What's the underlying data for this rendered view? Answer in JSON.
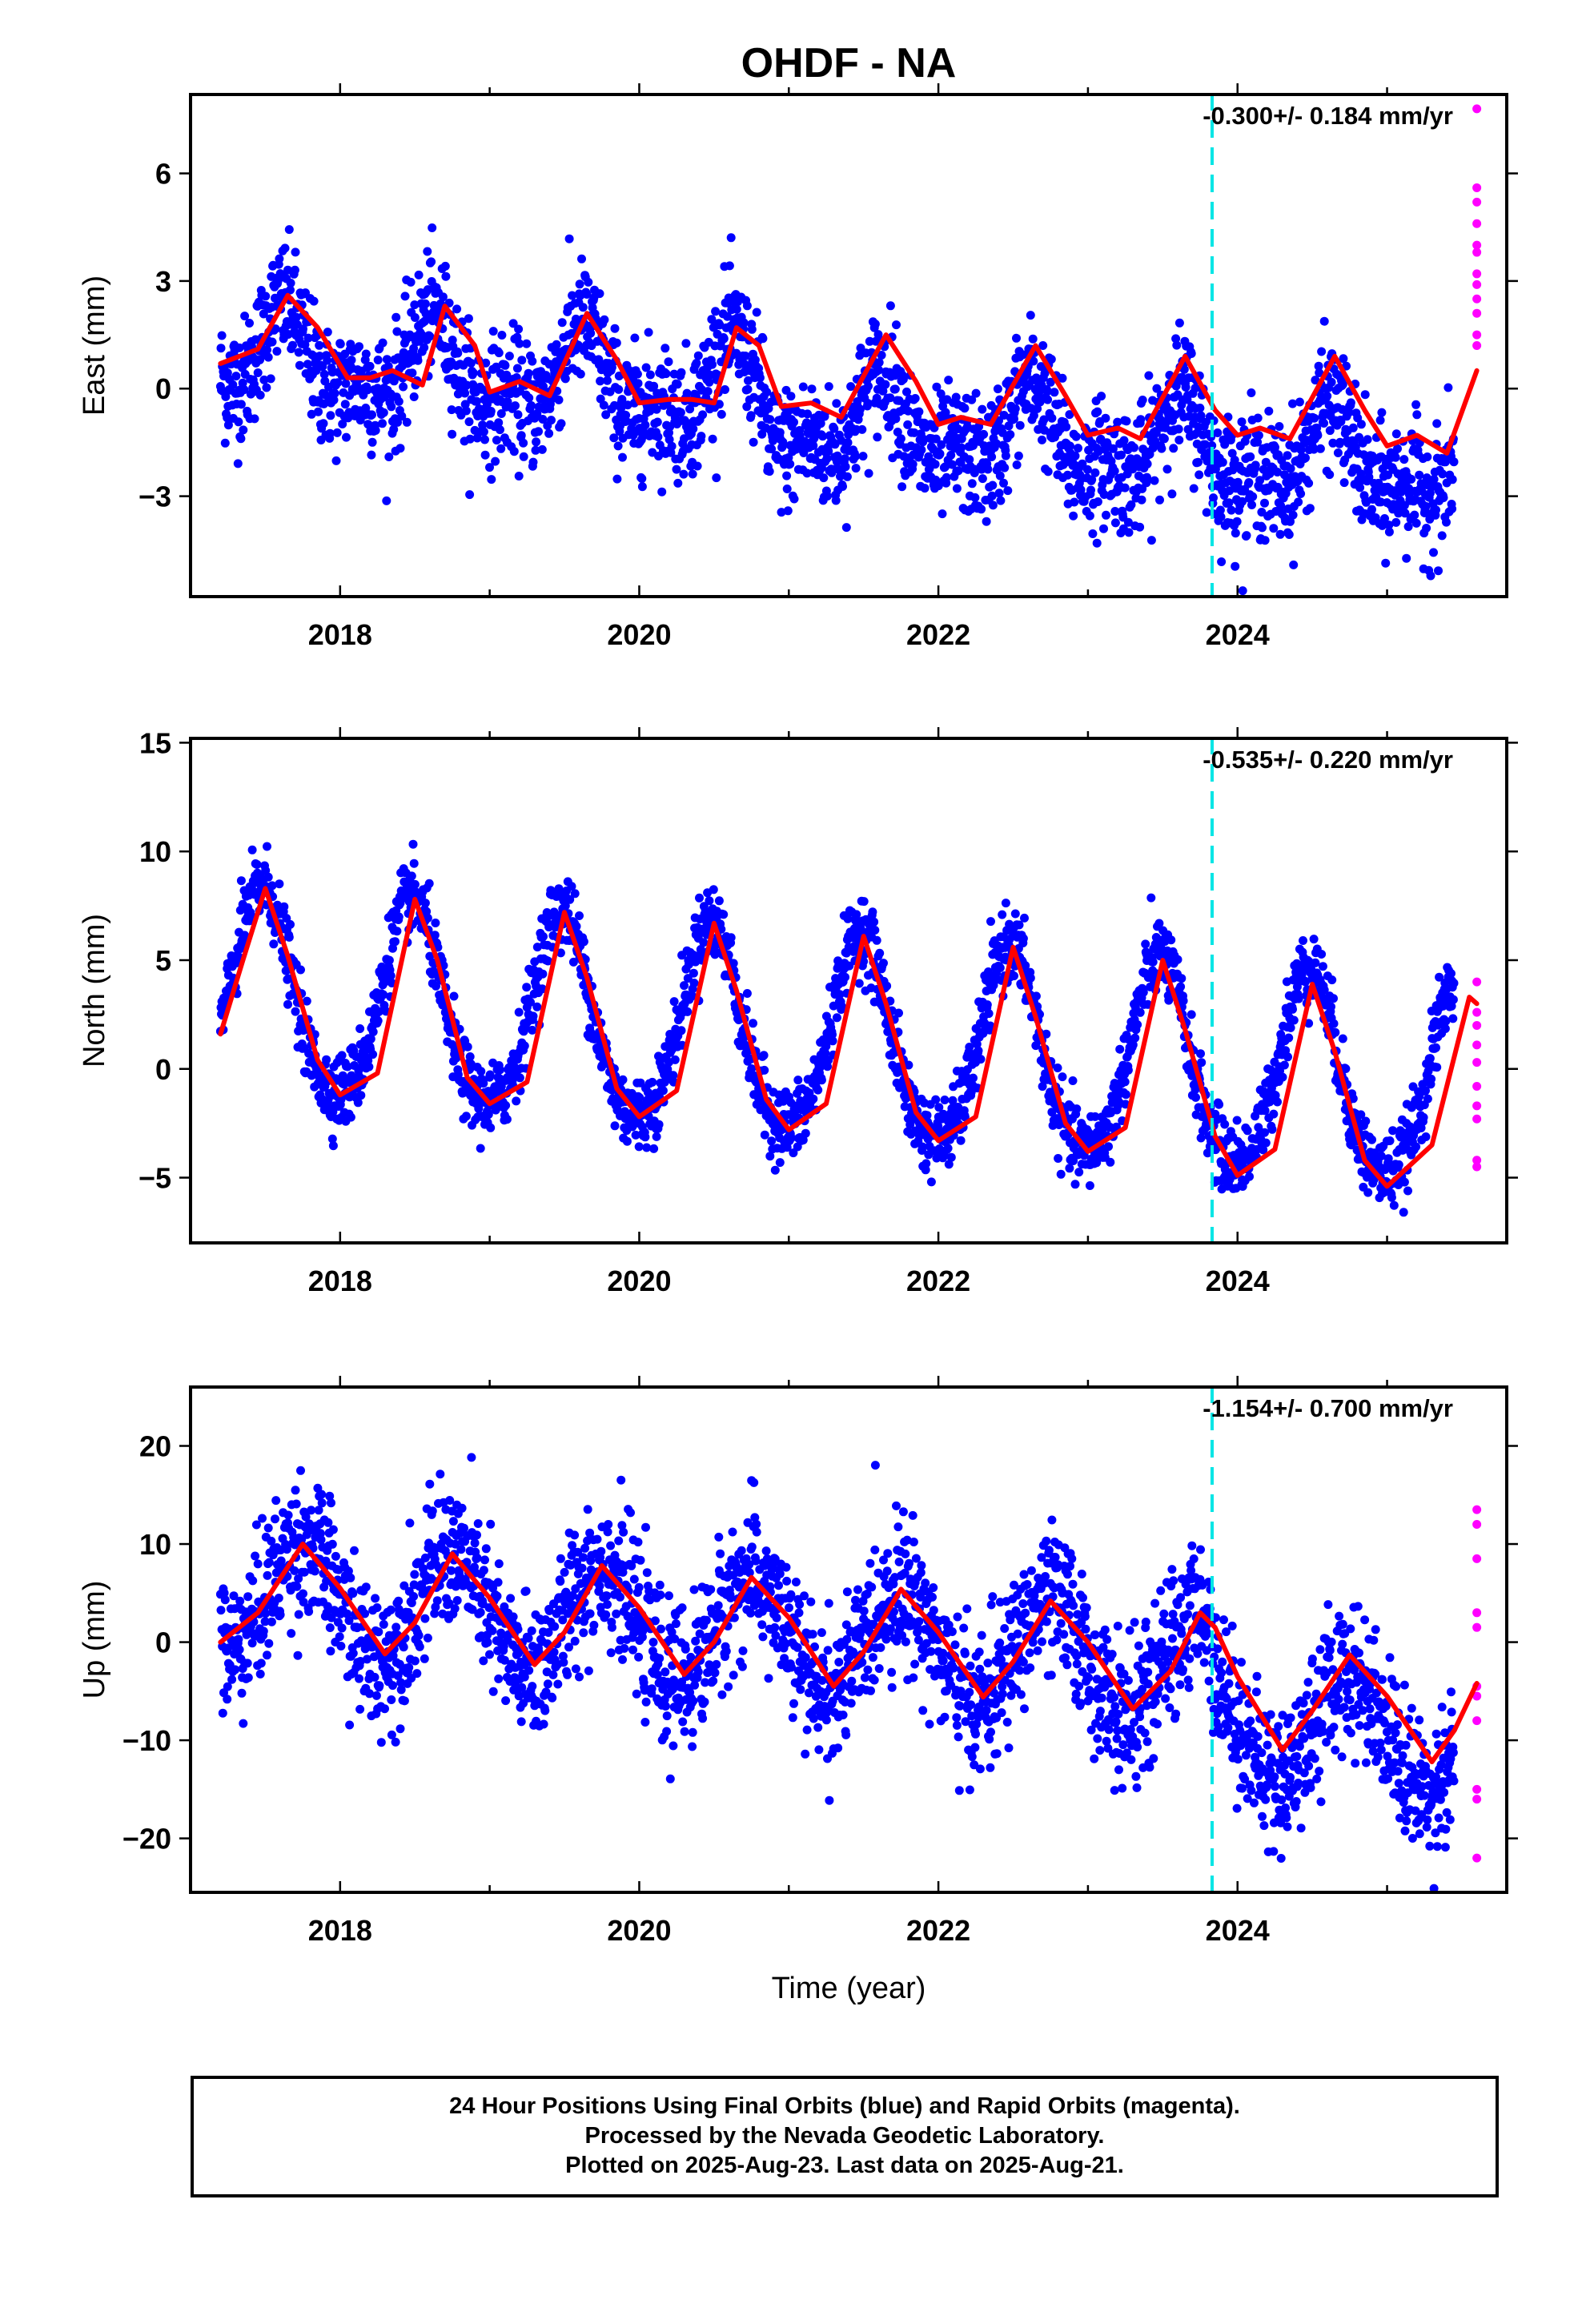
{
  "title": "OHDF - NA",
  "colors": {
    "final_orbits": "#0000ff",
    "rapid_orbits": "#ff00ff",
    "model_fit": "#ff0000",
    "event_line": "#00e5e5"
  },
  "footer": {
    "line1": "24 Hour Positions Using Final Orbits (blue) and Rapid Orbits (magenta).",
    "line2": "Processed by the Nevada Geodetic Laboratory.",
    "line3": "Plotted on 2025-Aug-23. Last data on 2025-Aug-21."
  },
  "chart_data": [
    {
      "type": "scatter",
      "name": "east",
      "ylabel": "East (mm)",
      "xlabel": "",
      "xlim": [
        2017.0,
        2025.8
      ],
      "ylim": [
        -5.8,
        8.2
      ],
      "x_ticks": [
        2018,
        2020,
        2022,
        2024
      ],
      "y_ticks": [
        -3,
        0,
        3,
        6
      ],
      "y_tick_labels": [
        "−3",
        "0",
        "3",
        "6"
      ],
      "rate_label": "-0.300+/- 0.184 mm/yr",
      "event_line_x": 2023.83,
      "series": [
        {
          "name": "final orbits (blue)",
          "color": "#0000ff",
          "x_range": [
            2017.2,
            2025.45
          ],
          "trend_offset": 0.95,
          "rate": -0.3,
          "annual_amp": 1.05,
          "annual_phase_peak": 0.62,
          "semi_amp": 0.55,
          "noise_sd": 0.85,
          "step_year": 2020.85,
          "step_mm": -0.7
        },
        {
          "name": "rapid orbits (magenta)",
          "color": "#ff00ff",
          "points": [
            [
              2025.6,
              7.8
            ],
            [
              2025.6,
              5.6
            ],
            [
              2025.6,
              5.2
            ],
            [
              2025.6,
              4.6
            ],
            [
              2025.6,
              4.0
            ],
            [
              2025.6,
              3.8
            ],
            [
              2025.6,
              3.2
            ],
            [
              2025.6,
              2.9
            ],
            [
              2025.6,
              2.5
            ],
            [
              2025.6,
              2.1
            ],
            [
              2025.6,
              1.5
            ],
            [
              2025.6,
              1.2
            ]
          ]
        }
      ],
      "fit_line": {
        "color": "#ff0000",
        "points": [
          [
            2017.2,
            0.7
          ],
          [
            2017.45,
            1.1
          ],
          [
            2017.65,
            2.6
          ],
          [
            2017.85,
            1.7
          ],
          [
            2018.05,
            0.3
          ],
          [
            2018.2,
            0.3
          ],
          [
            2018.35,
            0.5
          ],
          [
            2018.55,
            0.1
          ],
          [
            2018.7,
            2.3
          ],
          [
            2018.9,
            1.2
          ],
          [
            2019.0,
            -0.1
          ],
          [
            2019.2,
            0.2
          ],
          [
            2019.4,
            -0.2
          ],
          [
            2019.65,
            2.1
          ],
          [
            2019.85,
            0.8
          ],
          [
            2020.0,
            -0.4
          ],
          [
            2020.2,
            -0.3
          ],
          [
            2020.35,
            -0.3
          ],
          [
            2020.5,
            -0.4
          ],
          [
            2020.65,
            1.7
          ],
          [
            2020.8,
            1.2
          ],
          [
            2020.95,
            -0.5
          ],
          [
            2021.15,
            -0.4
          ],
          [
            2021.35,
            -0.8
          ],
          [
            2021.65,
            1.5
          ],
          [
            2021.85,
            0.2
          ],
          [
            2022.0,
            -1.0
          ],
          [
            2022.15,
            -0.8
          ],
          [
            2022.35,
            -1.0
          ],
          [
            2022.65,
            1.2
          ],
          [
            2022.85,
            -0.2
          ],
          [
            2023.0,
            -1.3
          ],
          [
            2023.2,
            -1.1
          ],
          [
            2023.35,
            -1.4
          ],
          [
            2023.65,
            0.9
          ],
          [
            2023.85,
            -0.6
          ],
          [
            2024.0,
            -1.3
          ],
          [
            2024.15,
            -1.1
          ],
          [
            2024.35,
            -1.4
          ],
          [
            2024.65,
            0.9
          ],
          [
            2024.85,
            -0.6
          ],
          [
            2025.0,
            -1.6
          ],
          [
            2025.2,
            -1.3
          ],
          [
            2025.4,
            -1.8
          ],
          [
            2025.6,
            0.5
          ]
        ]
      }
    },
    {
      "type": "scatter",
      "name": "north",
      "ylabel": "North (mm)",
      "xlabel": "",
      "xlim": [
        2017.0,
        2025.8
      ],
      "ylim": [
        -8.0,
        15.2
      ],
      "x_ticks": [
        2018,
        2020,
        2022,
        2024
      ],
      "y_ticks": [
        -5,
        0,
        5,
        10,
        15
      ],
      "y_tick_labels": [
        "−5",
        "0",
        "5",
        "10",
        "15"
      ],
      "rate_label": "-0.535+/- 0.220 mm/yr",
      "event_line_x": 2023.83,
      "series": [
        {
          "name": "final orbits (blue)",
          "color": "#0000ff",
          "x_range": [
            2017.2,
            2025.45
          ],
          "trend_offset": 3.4,
          "rate": -0.535,
          "annual_amp": 4.6,
          "annual_phase_peak": 0.48,
          "semi_amp": 0.6,
          "noise_sd": 0.85,
          "step_year": 0,
          "step_mm": 0
        },
        {
          "name": "rapid orbits (magenta)",
          "color": "#ff00ff",
          "points": [
            [
              2025.6,
              4.0
            ],
            [
              2025.6,
              2.6
            ],
            [
              2025.6,
              2.0
            ],
            [
              2025.6,
              1.1
            ],
            [
              2025.6,
              0.3
            ],
            [
              2025.6,
              -0.8
            ],
            [
              2025.6,
              -1.7
            ],
            [
              2025.6,
              -2.3
            ],
            [
              2025.6,
              -4.2
            ],
            [
              2025.6,
              -4.5
            ]
          ]
        }
      ],
      "fit_line": {
        "color": "#ff0000",
        "points": [
          [
            2017.2,
            1.6
          ],
          [
            2017.35,
            5.0
          ],
          [
            2017.5,
            8.3
          ],
          [
            2017.65,
            5.2
          ],
          [
            2017.85,
            0.4
          ],
          [
            2018.0,
            -1.2
          ],
          [
            2018.25,
            -0.2
          ],
          [
            2018.5,
            7.8
          ],
          [
            2018.65,
            5.0
          ],
          [
            2018.85,
            -0.4
          ],
          [
            2019.0,
            -1.6
          ],
          [
            2019.25,
            -0.6
          ],
          [
            2019.5,
            7.2
          ],
          [
            2019.65,
            4.2
          ],
          [
            2019.85,
            -0.9
          ],
          [
            2020.0,
            -2.2
          ],
          [
            2020.25,
            -1.0
          ],
          [
            2020.5,
            6.7
          ],
          [
            2020.65,
            3.6
          ],
          [
            2020.85,
            -1.4
          ],
          [
            2021.0,
            -2.8
          ],
          [
            2021.25,
            -1.6
          ],
          [
            2021.5,
            6.1
          ],
          [
            2021.65,
            3.0
          ],
          [
            2021.85,
            -2.0
          ],
          [
            2022.0,
            -3.3
          ],
          [
            2022.25,
            -2.2
          ],
          [
            2022.5,
            5.6
          ],
          [
            2022.65,
            2.4
          ],
          [
            2022.85,
            -2.5
          ],
          [
            2023.0,
            -3.8
          ],
          [
            2023.25,
            -2.7
          ],
          [
            2023.5,
            5.0
          ],
          [
            2023.65,
            1.8
          ],
          [
            2023.85,
            -3.1
          ],
          [
            2024.0,
            -4.9
          ],
          [
            2024.25,
            -3.7
          ],
          [
            2024.5,
            3.9
          ],
          [
            2024.65,
            0.8
          ],
          [
            2024.85,
            -4.2
          ],
          [
            2025.0,
            -5.4
          ],
          [
            2025.3,
            -3.5
          ],
          [
            2025.55,
            3.3
          ],
          [
            2025.6,
            3.0
          ]
        ]
      }
    },
    {
      "type": "scatter",
      "name": "up",
      "ylabel": "Up (mm)",
      "xlabel": "Time (year)",
      "xlim": [
        2017.0,
        2025.8
      ],
      "ylim": [
        -25.5,
        26.0
      ],
      "x_ticks": [
        2018,
        2020,
        2022,
        2024
      ],
      "y_ticks": [
        -20,
        -10,
        0,
        10,
        20
      ],
      "y_tick_labels": [
        "−20",
        "−10",
        "0",
        "10",
        "20"
      ],
      "rate_label": "-1.154+/- 0.700 mm/yr",
      "event_line_x": 2023.83,
      "series": [
        {
          "name": "final orbits (blue)",
          "color": "#0000ff",
          "x_range": [
            2017.2,
            2025.45
          ],
          "trend_offset": 5.0,
          "rate": -1.154,
          "annual_amp": 5.6,
          "annual_phase_peak": 0.75,
          "semi_amp": 0.0,
          "noise_sd": 3.6,
          "step_year": 2023.83,
          "step_mm": -5.0
        },
        {
          "name": "rapid orbits (magenta)",
          "color": "#ff00ff",
          "points": [
            [
              2025.6,
              13.5
            ],
            [
              2025.6,
              12.0
            ],
            [
              2025.6,
              8.5
            ],
            [
              2025.6,
              3.0
            ],
            [
              2025.6,
              1.5
            ],
            [
              2025.6,
              -4.5
            ],
            [
              2025.6,
              -5.5
            ],
            [
              2025.6,
              -8.0
            ],
            [
              2025.6,
              -15.0
            ],
            [
              2025.6,
              -16.0
            ],
            [
              2025.6,
              -22.0
            ]
          ]
        }
      ],
      "fit_line": {
        "color": "#ff0000",
        "points": [
          [
            2017.2,
            0.0
          ],
          [
            2017.45,
            3.0
          ],
          [
            2017.75,
            10.0
          ],
          [
            2018.0,
            5.5
          ],
          [
            2018.3,
            -1.2
          ],
          [
            2018.5,
            2.0
          ],
          [
            2018.75,
            9.0
          ],
          [
            2019.0,
            4.5
          ],
          [
            2019.3,
            -2.3
          ],
          [
            2019.5,
            1.0
          ],
          [
            2019.75,
            7.8
          ],
          [
            2020.0,
            3.5
          ],
          [
            2020.3,
            -3.3
          ],
          [
            2020.5,
            0.0
          ],
          [
            2020.75,
            6.6
          ],
          [
            2021.0,
            2.5
          ],
          [
            2021.3,
            -4.5
          ],
          [
            2021.5,
            -1.0
          ],
          [
            2021.75,
            5.4
          ],
          [
            2022.0,
            1.0
          ],
          [
            2022.3,
            -5.6
          ],
          [
            2022.5,
            -2.0
          ],
          [
            2022.75,
            4.2
          ],
          [
            2023.0,
            0.0
          ],
          [
            2023.3,
            -6.8
          ],
          [
            2023.55,
            -3.0
          ],
          [
            2023.75,
            3.0
          ],
          [
            2023.85,
            1.5
          ],
          [
            2024.0,
            -3.5
          ],
          [
            2024.3,
            -11.0
          ],
          [
            2024.5,
            -7.0
          ],
          [
            2024.75,
            -1.3
          ],
          [
            2025.0,
            -5.5
          ],
          [
            2025.3,
            -12.2
          ],
          [
            2025.45,
            -9.0
          ],
          [
            2025.6,
            -4.2
          ]
        ]
      }
    }
  ]
}
